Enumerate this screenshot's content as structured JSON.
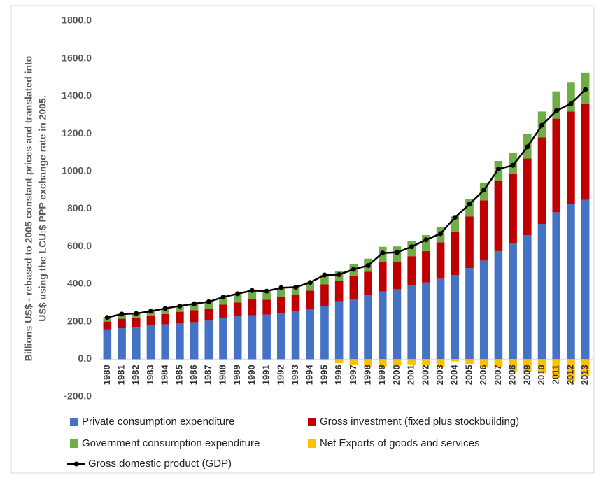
{
  "chart_data": {
    "type": "stacked_bar_line",
    "y_label": [
      "Billions US$ -  rebased to 2005 constant prices and translated into",
      "US$ using the LCU:$ PPP exchange rate in 2005."
    ],
    "categories": [
      "1980",
      "1981",
      "1982",
      "1983",
      "1984",
      "1985",
      "1986",
      "1987",
      "1988",
      "1989",
      "1990",
      "1991",
      "1992",
      "1993",
      "1994",
      "1995",
      "1996",
      "1997",
      "1998",
      "1999",
      "2000",
      "2001",
      "2002",
      "2003",
      "2004",
      "2005",
      "2006",
      "2007",
      "2008",
      "2009",
      "2010",
      "2011",
      "2012",
      "2013"
    ],
    "series": [
      {
        "name": "Private consumption expenditure",
        "color": "#4472c4",
        "kind": "bar",
        "values": [
          158,
          165,
          168,
          180,
          185,
          192,
          197,
          205,
          218,
          228,
          233,
          237,
          243,
          255,
          268,
          282,
          308,
          320,
          340,
          360,
          372,
          395,
          408,
          428,
          447,
          485,
          525,
          575,
          618,
          660,
          720,
          782,
          825,
          848
        ]
      },
      {
        "name": "Gross investment (fixed plus stockbuilding)",
        "color": "#c00000",
        "kind": "bar",
        "values": [
          42,
          50,
          50,
          53,
          55,
          60,
          63,
          63,
          72,
          74,
          85,
          79,
          87,
          85,
          97,
          116,
          107,
          125,
          125,
          160,
          148,
          153,
          167,
          194,
          233,
          275,
          320,
          375,
          367,
          408,
          460,
          498,
          493,
          512
        ]
      },
      {
        "name": "Government consumption expenditure",
        "color": "#70ad47",
        "kind": "bar",
        "values": [
          25,
          23,
          27,
          25,
          30,
          30,
          35,
          37,
          40,
          43,
          44,
          44,
          48,
          45,
          45,
          50,
          55,
          60,
          70,
          78,
          80,
          80,
          85,
          83,
          80,
          92,
          95,
          105,
          113,
          130,
          138,
          145,
          157,
          165
        ]
      },
      {
        "name": "Net Exports of goods and services",
        "color": "#ffc000",
        "kind": "bar",
        "values": [
          -3,
          -3,
          -3,
          -4,
          -3,
          -3,
          -6,
          -5,
          -4,
          -4,
          -3,
          -3,
          -3,
          -5,
          -5,
          -6,
          -22,
          -30,
          -38,
          -40,
          -35,
          -28,
          -30,
          -40,
          -12,
          -25,
          -45,
          -42,
          -65,
          -70,
          -75,
          -100,
          -115,
          -90
        ]
      },
      {
        "name": "Gross domestic product (GDP)",
        "color": "#000000",
        "kind": "line",
        "values": [
          222,
          240,
          243,
          255,
          270,
          283,
          295,
          305,
          330,
          348,
          365,
          362,
          380,
          383,
          408,
          448,
          450,
          478,
          498,
          565,
          568,
          598,
          635,
          668,
          755,
          825,
          900,
          1012,
          1032,
          1130,
          1245,
          1322,
          1360,
          1435
        ]
      }
    ],
    "ylim": [
      -200,
      1800
    ],
    "yticks": [
      {
        "value": -200,
        "label": "-200.0"
      },
      {
        "value": 0,
        "label": "0.0"
      },
      {
        "value": 200,
        "label": "200.0"
      },
      {
        "value": 400,
        "label": "400.0"
      },
      {
        "value": 600,
        "label": "600.0"
      },
      {
        "value": 800,
        "label": "800.0"
      },
      {
        "value": 1000,
        "label": "1000.0"
      },
      {
        "value": 1200,
        "label": "1200.0"
      },
      {
        "value": 1400,
        "label": "1400.0"
      },
      {
        "value": 1600,
        "label": "1600.0"
      },
      {
        "value": 1800,
        "label": "1800.0"
      }
    ],
    "grid": false
  }
}
